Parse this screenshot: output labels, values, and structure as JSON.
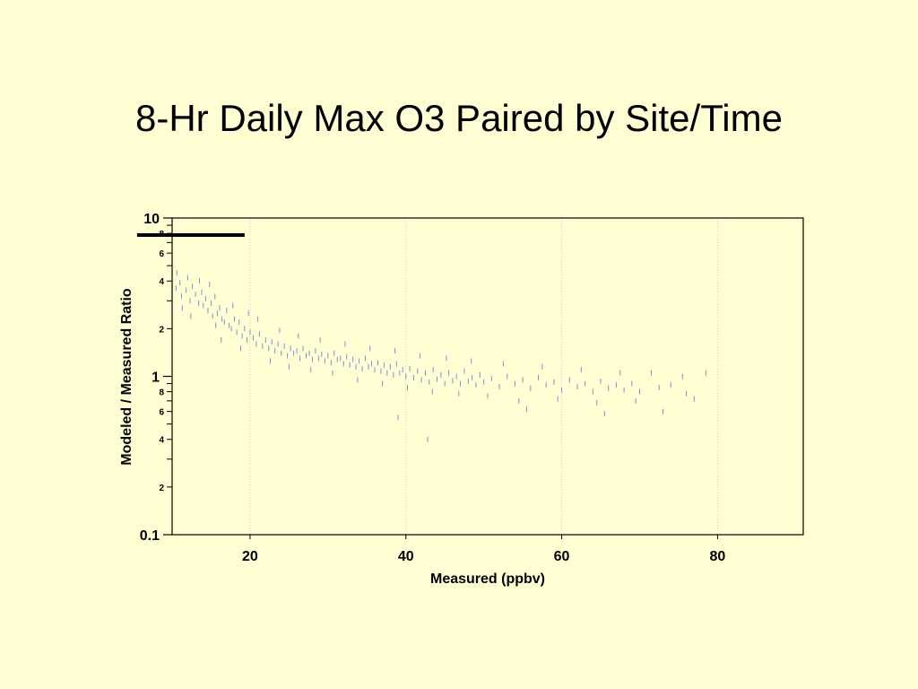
{
  "slide": {
    "title": "8-Hr Daily Max O3 Paired by Site/Time"
  },
  "colors": {
    "background": "#ffffd3",
    "points": "#5566dd",
    "axis": "#000000",
    "grid": "#c8c8d8"
  },
  "chart_data": {
    "type": "scatter",
    "title": "8-Hr Daily Max O3 Paired by Site/Time",
    "xlabel": "Measured (ppbv)",
    "ylabel": "Modeled / Measured Ratio",
    "xlim": [
      10,
      91
    ],
    "ylim": [
      0.1,
      10
    ],
    "yscale": "log",
    "grid": "vertical dotted at x ticks",
    "marker": "short vertical dash",
    "x_ticks": [
      {
        "value": 20,
        "label": "20"
      },
      {
        "value": 40,
        "label": "40"
      },
      {
        "value": 60,
        "label": "60"
      },
      {
        "value": 80,
        "label": "80"
      }
    ],
    "y_major_ticks": [
      {
        "value": 10,
        "label": "10"
      },
      {
        "value": 1,
        "label": "1"
      },
      {
        "value": 0.1,
        "label": "0.1"
      }
    ],
    "y_minor_ticks": [
      {
        "value": 8,
        "label": "8"
      },
      {
        "value": 6,
        "label": "6"
      },
      {
        "value": 4,
        "label": "4"
      },
      {
        "value": 2,
        "label": "2"
      },
      {
        "value": 0.8,
        "label": "8"
      },
      {
        "value": 0.6,
        "label": "6"
      },
      {
        "value": 0.4,
        "label": "4"
      },
      {
        "value": 0.2,
        "label": "2"
      }
    ],
    "y_unlabeled_ticks": [
      9,
      7,
      5,
      3,
      0.9,
      0.7,
      0.5,
      0.3
    ],
    "reference_line": {
      "x": [
        5.5,
        19.3
      ],
      "y": 7.8
    },
    "series": [
      {
        "points": [
          [
            10.5,
            3.6
          ],
          [
            11.0,
            3.9
          ],
          [
            11.2,
            3.2
          ],
          [
            11.8,
            3.5
          ],
          [
            12.0,
            4.2
          ],
          [
            12.3,
            3.0
          ],
          [
            12.6,
            3.7
          ],
          [
            13.0,
            3.3
          ],
          [
            13.4,
            2.9
          ],
          [
            13.8,
            3.4
          ],
          [
            14.0,
            2.8
          ],
          [
            14.3,
            3.1
          ],
          [
            14.6,
            2.6
          ],
          [
            15.0,
            2.9
          ],
          [
            15.2,
            2.4
          ],
          [
            15.5,
            3.2
          ],
          [
            15.8,
            2.5
          ],
          [
            16.1,
            2.7
          ],
          [
            16.4,
            2.3
          ],
          [
            16.7,
            2.2
          ],
          [
            17.0,
            2.6
          ],
          [
            17.3,
            2.1
          ],
          [
            17.6,
            2.0
          ],
          [
            18.0,
            2.3
          ],
          [
            18.3,
            1.9
          ],
          [
            18.6,
            2.2
          ],
          [
            19.0,
            1.8
          ],
          [
            19.3,
            2.0
          ],
          [
            19.6,
            1.7
          ],
          [
            20.0,
            1.9
          ],
          [
            20.4,
            1.75
          ],
          [
            20.8,
            1.6
          ],
          [
            21.2,
            1.85
          ],
          [
            21.6,
            1.55
          ],
          [
            22.0,
            1.7
          ],
          [
            22.4,
            1.5
          ],
          [
            22.8,
            1.65
          ],
          [
            23.2,
            1.45
          ],
          [
            23.6,
            1.6
          ],
          [
            24.0,
            1.4
          ],
          [
            24.4,
            1.55
          ],
          [
            24.8,
            1.35
          ],
          [
            25.2,
            1.5
          ],
          [
            25.6,
            1.4
          ],
          [
            26.0,
            1.45
          ],
          [
            26.4,
            1.3
          ],
          [
            26.8,
            1.5
          ],
          [
            27.2,
            1.35
          ],
          [
            27.6,
            1.4
          ],
          [
            28.0,
            1.28
          ],
          [
            28.4,
            1.45
          ],
          [
            28.8,
            1.3
          ],
          [
            29.2,
            1.38
          ],
          [
            29.6,
            1.25
          ],
          [
            30.0,
            1.35
          ],
          [
            30.4,
            1.22
          ],
          [
            30.8,
            1.4
          ],
          [
            31.2,
            1.28
          ],
          [
            31.6,
            1.3
          ],
          [
            32.0,
            1.2
          ],
          [
            32.4,
            1.33
          ],
          [
            32.8,
            1.18
          ],
          [
            33.2,
            1.28
          ],
          [
            33.6,
            1.15
          ],
          [
            34.0,
            1.25
          ],
          [
            34.4,
            1.12
          ],
          [
            34.8,
            1.3
          ],
          [
            35.2,
            1.15
          ],
          [
            35.6,
            1.2
          ],
          [
            36.0,
            1.1
          ],
          [
            36.4,
            1.22
          ],
          [
            36.8,
            1.08
          ],
          [
            37.2,
            1.18
          ],
          [
            37.6,
            1.05
          ],
          [
            38.0,
            1.15
          ],
          [
            38.4,
            1.02
          ],
          [
            38.8,
            1.2
          ],
          [
            39.2,
            1.05
          ],
          [
            39.6,
            1.1
          ],
          [
            40.0,
            1.0
          ],
          [
            40.5,
            1.12
          ],
          [
            41.0,
            0.98
          ],
          [
            41.5,
            1.08
          ],
          [
            42.0,
            0.95
          ],
          [
            42.5,
            1.05
          ],
          [
            43.0,
            0.92
          ],
          [
            43.5,
            1.1
          ],
          [
            44.0,
            0.96
          ],
          [
            44.5,
            1.02
          ],
          [
            45.0,
            0.9
          ],
          [
            45.5,
            1.05
          ],
          [
            46.0,
            0.94
          ],
          [
            46.5,
            1.0
          ],
          [
            47.0,
            0.9
          ],
          [
            47.5,
            1.08
          ],
          [
            48.0,
            0.93
          ],
          [
            48.5,
            0.98
          ],
          [
            49.0,
            0.88
          ],
          [
            49.5,
            1.02
          ],
          [
            50.0,
            0.92
          ],
          [
            51.0,
            0.97
          ],
          [
            52.0,
            0.86
          ],
          [
            53.0,
            1.0
          ],
          [
            54.0,
            0.9
          ],
          [
            55.0,
            0.95
          ],
          [
            56.0,
            0.84
          ],
          [
            57.0,
            0.98
          ],
          [
            58.0,
            0.88
          ],
          [
            59.0,
            0.92
          ],
          [
            60.0,
            0.82
          ],
          [
            61.0,
            0.95
          ],
          [
            62.0,
            0.86
          ],
          [
            63.0,
            0.9
          ],
          [
            64.0,
            0.8
          ],
          [
            65.0,
            0.93
          ],
          [
            66.0,
            0.84
          ],
          [
            67.0,
            0.88
          ],
          [
            68.0,
            0.82
          ],
          [
            69.0,
            0.9
          ],
          [
            70.0,
            0.8
          ],
          [
            71.5,
            1.05
          ],
          [
            72.5,
            0.85
          ],
          [
            74.0,
            0.88
          ],
          [
            76.0,
            0.78
          ],
          [
            78.5,
            1.05
          ],
          [
            10.6,
            4.5
          ],
          [
            11.3,
            2.7
          ],
          [
            12.4,
            2.4
          ],
          [
            13.5,
            4.0
          ],
          [
            14.8,
            3.8
          ],
          [
            15.6,
            2.1
          ],
          [
            16.3,
            1.7
          ],
          [
            17.8,
            2.8
          ],
          [
            18.8,
            1.5
          ],
          [
            19.8,
            2.5
          ],
          [
            21.0,
            2.3
          ],
          [
            22.6,
            1.25
          ],
          [
            23.8,
            1.95
          ],
          [
            25.0,
            1.15
          ],
          [
            26.2,
            1.8
          ],
          [
            27.8,
            1.1
          ],
          [
            29.0,
            1.7
          ],
          [
            30.6,
            1.05
          ],
          [
            32.2,
            1.6
          ],
          [
            33.8,
            0.95
          ],
          [
            35.4,
            1.5
          ],
          [
            37.0,
            0.9
          ],
          [
            38.6,
            1.45
          ],
          [
            39.0,
            0.55
          ],
          [
            40.2,
            0.85
          ],
          [
            41.8,
            1.35
          ],
          [
            42.8,
            0.4
          ],
          [
            43.4,
            0.8
          ],
          [
            45.2,
            1.3
          ],
          [
            46.8,
            0.78
          ],
          [
            48.4,
            1.25
          ],
          [
            50.5,
            0.75
          ],
          [
            52.5,
            1.2
          ],
          [
            54.5,
            0.7
          ],
          [
            55.5,
            0.62
          ],
          [
            57.5,
            1.15
          ],
          [
            59.5,
            0.72
          ],
          [
            62.5,
            1.1
          ],
          [
            64.5,
            0.68
          ],
          [
            65.5,
            0.58
          ],
          [
            67.5,
            1.05
          ],
          [
            69.5,
            0.7
          ],
          [
            73.0,
            0.6
          ],
          [
            75.5,
            1.0
          ],
          [
            77.0,
            0.72
          ]
        ]
      }
    ]
  }
}
